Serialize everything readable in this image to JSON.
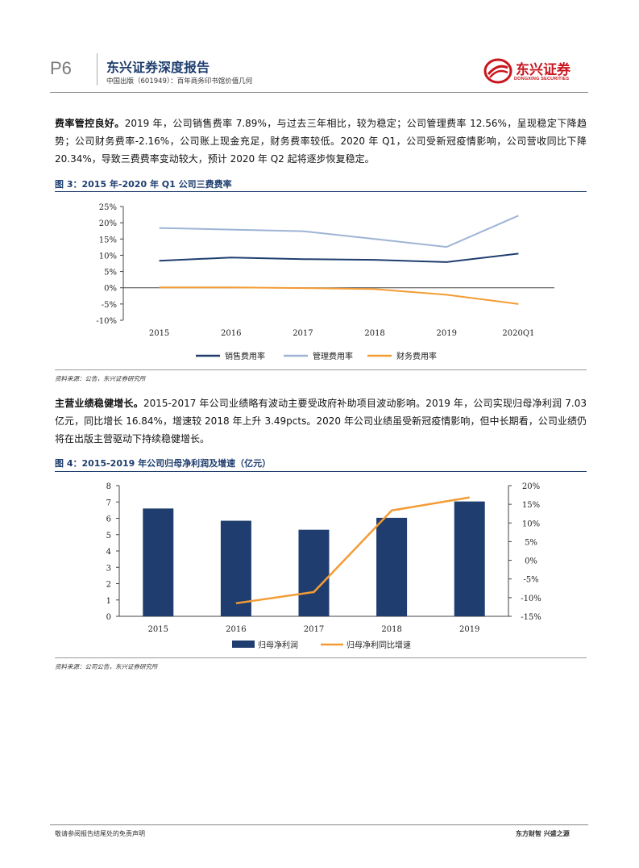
{
  "header": {
    "page_no": "P6",
    "report_title": "东兴证券深度报告",
    "report_subtitle": "中国出版（601949）：百年商务印书馆价值几何",
    "logo_cn": "东兴证券",
    "logo_en": "DONGXING SECURITIES"
  },
  "para1": {
    "lead": "费率管控良好。",
    "text": "2019 年，公司销售费率 7.89%，与过去三年相比，较为稳定；公司管理费率 12.56%，呈现稳定下降趋势；公司财务费率-2.16%，公司账上现金充足，财务费率较低。2020 年 Q1，公司受新冠疫情影响，公司营收同比下降 20.34%，导致三费费率变动较大，预计 2020 年 Q2 起将逐步恢复稳定。"
  },
  "fig3": {
    "title": "图 3：2015 年-2020 年 Q1 公司三费费率",
    "source": "资料来源：公告，东兴证券研究所"
  },
  "para2": {
    "lead": "主营业绩稳健增长。",
    "text": "2015-2017 年公司业绩略有波动主要受政府补助项目波动影响。2019 年，公司实现归母净利润 7.03 亿元，同比增长 16.84%，增速较 2018 年上升 3.49pcts。2020 年公司业绩虽受新冠疫情影响，但中长期看，公司业绩仍将在出版主营驱动下持续稳健增长。"
  },
  "fig4": {
    "title": "图 4：2015-2019 年公司归母净利润及增速（亿元）",
    "source": "资料来源：公司公告，东兴证券研究所"
  },
  "chart_data": [
    {
      "type": "line",
      "categories": [
        "2015",
        "2016",
        "2017",
        "2018",
        "2019",
        "2020Q1"
      ],
      "y_ticks": [
        "25%",
        "20%",
        "15%",
        "10%",
        "5%",
        "0%",
        "-5%",
        "-10%"
      ],
      "ylim": [
        -10,
        25
      ],
      "series": [
        {
          "name": "销售费用率",
          "color": "#1f3e6f",
          "values": [
            8.3,
            9.3,
            8.8,
            8.6,
            7.89,
            10.5
          ]
        },
        {
          "name": "管理费用率",
          "color": "#9db4d4",
          "values": [
            18.4,
            17.9,
            17.4,
            15.0,
            12.56,
            22.2
          ]
        },
        {
          "name": "财务费用率",
          "color": "#f39c34",
          "values": [
            0.1,
            0.1,
            -0.1,
            -0.4,
            -2.16,
            -5.0
          ]
        }
      ]
    },
    {
      "type": "bar",
      "categories": [
        "2015",
        "2016",
        "2017",
        "2018",
        "2019"
      ],
      "y_left_ticks": [
        "8",
        "7",
        "6",
        "5",
        "4",
        "3",
        "2",
        "1",
        "0"
      ],
      "y_right_ticks": [
        "20%",
        "15%",
        "10%",
        "5%",
        "0%",
        "-5%",
        "-10%",
        "-15%"
      ],
      "ylim_left": [
        0,
        8
      ],
      "ylim_right": [
        -15,
        20
      ],
      "series": [
        {
          "name": "归母净利润",
          "kind": "bar",
          "color": "#1f3e6f",
          "values": [
            6.6,
            5.85,
            5.3,
            6.03,
            7.03
          ]
        },
        {
          "name": "归母净利同比增速",
          "kind": "line",
          "color": "#f39c34",
          "values": [
            null,
            -11.5,
            -8.5,
            13.35,
            16.84
          ]
        }
      ]
    }
  ],
  "footer": {
    "left": "敬请参阅报告结尾处的免责声明",
    "right": "东方财智 兴盛之源"
  }
}
